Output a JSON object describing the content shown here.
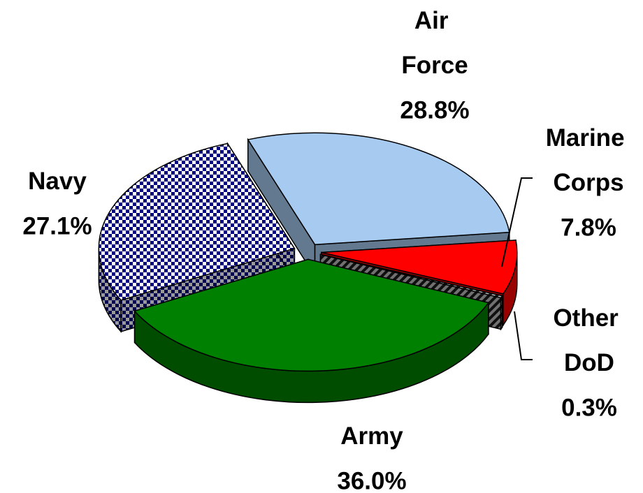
{
  "chart_data": {
    "type": "pie",
    "categories": [
      "Air Force",
      "Marine Corps",
      "Other DoD",
      "Army",
      "Navy"
    ],
    "values": [
      28.8,
      7.8,
      0.3,
      36.0,
      27.1
    ],
    "value_labels": [
      "28.8%",
      "7.8%",
      "0.3%",
      "36.0%",
      "27.1%"
    ],
    "colors": [
      "#a6caf0",
      "#ff0000",
      "#808080",
      "#008000",
      "#000080"
    ],
    "patterns": [
      null,
      null,
      "hatch",
      null,
      "checker"
    ]
  }
}
